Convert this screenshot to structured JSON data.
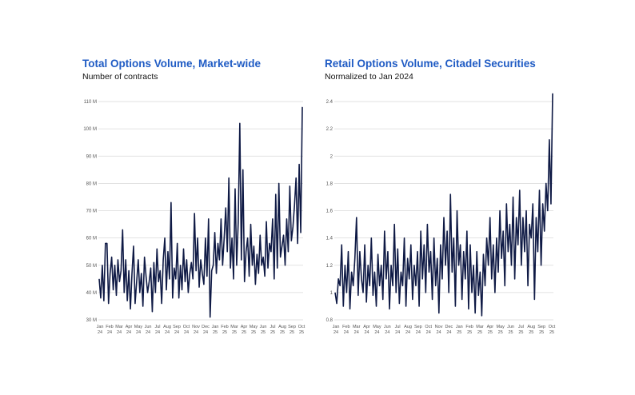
{
  "chart_data": [
    {
      "type": "line",
      "title": "Total Options Volume, Market-wide",
      "subtitle": "Number of contracts",
      "ylim": [
        30,
        110
      ],
      "yticks": [
        30,
        40,
        50,
        60,
        70,
        80,
        90,
        100,
        110
      ],
      "ytick_labels": [
        "30 M",
        "40 M",
        "50 M",
        "60 M",
        "70 M",
        "80 M",
        "90 M",
        "100 M",
        "110 M"
      ],
      "xtick_labels": [
        [
          "Jan",
          "24"
        ],
        [
          "Feb",
          "24"
        ],
        [
          "Mar",
          "24"
        ],
        [
          "Apr",
          "24"
        ],
        [
          "May",
          "24"
        ],
        [
          "Jun",
          "24"
        ],
        [
          "Jul",
          "24"
        ],
        [
          "Aug",
          "24"
        ],
        [
          "Sep",
          "24"
        ],
        [
          "Oct",
          "24"
        ],
        [
          "Nov",
          "24"
        ],
        [
          "Dec",
          "24"
        ],
        [
          "Jan",
          "25"
        ],
        [
          "Feb",
          "25"
        ],
        [
          "Mar",
          "25"
        ],
        [
          "Apr",
          "25"
        ],
        [
          "May",
          "25"
        ],
        [
          "Jun",
          "25"
        ],
        [
          "Jul",
          "25"
        ],
        [
          "Aug",
          "25"
        ],
        [
          "Sep",
          "25"
        ],
        [
          "Oct",
          "25"
        ]
      ],
      "series": [
        {
          "name": "Total Options Volume",
          "color": "#0f1a45",
          "values": [
            45,
            38,
            50,
            37,
            58,
            58,
            36,
            47,
            53,
            41,
            50,
            39,
            52,
            44,
            48,
            63,
            40,
            52,
            37,
            48,
            34,
            47,
            57,
            36,
            44,
            52,
            40,
            47,
            35,
            53,
            46,
            40,
            44,
            49,
            33,
            51,
            40,
            56,
            44,
            48,
            36,
            52,
            60,
            41,
            55,
            45,
            73,
            38,
            49,
            45,
            58,
            38,
            50,
            41,
            56,
            44,
            52,
            40,
            47,
            51,
            45,
            69,
            48,
            60,
            42,
            52,
            47,
            43,
            60,
            46,
            67,
            31,
            48,
            50,
            62,
            47,
            58,
            52,
            67,
            50,
            60,
            71,
            55,
            82,
            49,
            60,
            45,
            78,
            50,
            66,
            102,
            52,
            85,
            44,
            55,
            60,
            46,
            65,
            50,
            57,
            43,
            54,
            47,
            61,
            50,
            53,
            46,
            66,
            49,
            58,
            55,
            67,
            45,
            76,
            49,
            80,
            53,
            57,
            61,
            50,
            67,
            55,
            79,
            59,
            64,
            72,
            82,
            58,
            87,
            62,
            108
          ]
        }
      ]
    },
    {
      "type": "line",
      "title": "Retail Options Volume, Citadel Securities",
      "subtitle": "Normalized to Jan 2024",
      "ylim": [
        0.8,
        2.4
      ],
      "yticks": [
        0.8,
        1,
        1.2,
        1.4,
        1.6,
        1.8,
        2,
        2.2,
        2.4
      ],
      "ytick_labels": [
        "0.8",
        "1",
        "1.2",
        "1.4",
        "1.6",
        "1.8",
        "2",
        "2.2",
        "2.4"
      ],
      "xtick_labels": [
        [
          "Jan",
          "24"
        ],
        [
          "Feb",
          "24"
        ],
        [
          "Mar",
          "24"
        ],
        [
          "Apr",
          "24"
        ],
        [
          "May",
          "24"
        ],
        [
          "Jun",
          "24"
        ],
        [
          "Jul",
          "24"
        ],
        [
          "Aug",
          "24"
        ],
        [
          "Sep",
          "24"
        ],
        [
          "Oct",
          "24"
        ],
        [
          "Nov",
          "24"
        ],
        [
          "Dec",
          "24"
        ],
        [
          "Jan",
          "25"
        ],
        [
          "Feb",
          "25"
        ],
        [
          "Mar",
          "25"
        ],
        [
          "Apr",
          "25"
        ],
        [
          "May",
          "25"
        ],
        [
          "Jun",
          "25"
        ],
        [
          "Jul",
          "25"
        ],
        [
          "Aug",
          "25"
        ],
        [
          "Sep",
          "25"
        ],
        [
          "Oct",
          "25"
        ]
      ],
      "series": [
        {
          "name": "Retail Options Volume",
          "color": "#0f1a45",
          "values": [
            1.0,
            0.92,
            1.1,
            1.05,
            1.35,
            0.9,
            1.2,
            1.0,
            1.3,
            0.88,
            1.15,
            1.05,
            1.25,
            1.55,
            0.98,
            1.3,
            1.1,
            1.0,
            1.35,
            0.93,
            1.2,
            1.05,
            1.4,
            0.98,
            1.15,
            0.9,
            1.28,
            1.05,
            1.2,
            0.95,
            1.45,
            1.1,
            1.3,
            0.88,
            1.2,
            1.05,
            1.5,
            1.0,
            1.32,
            0.92,
            1.15,
            1.05,
            1.4,
            0.9,
            1.25,
            1.1,
            1.35,
            0.95,
            1.2,
            1.05,
            1.3,
            0.9,
            1.45,
            1.1,
            1.35,
            1.0,
            1.5,
            1.15,
            1.3,
            0.95,
            1.4,
            1.05,
            1.25,
            0.85,
            1.35,
            1.1,
            1.55,
            1.2,
            1.45,
            1.0,
            1.72,
            1.15,
            1.4,
            0.9,
            1.6,
            1.2,
            1.35,
            0.95,
            1.3,
            1.1,
            1.45,
            0.88,
            1.35,
            1.0,
            1.2,
            0.85,
            1.3,
            0.98,
            1.15,
            0.83,
            1.28,
            1.05,
            1.4,
            1.2,
            1.55,
            1.1,
            1.35,
            1.0,
            1.4,
            1.15,
            1.6,
            1.25,
            1.45,
            1.05,
            1.65,
            1.3,
            1.5,
            1.2,
            1.7,
            1.1,
            1.55,
            1.35,
            1.75,
            1.2,
            1.55,
            1.3,
            1.6,
            1.05,
            1.5,
            1.4,
            1.65,
            0.95,
            1.55,
            1.3,
            1.75,
            1.2,
            1.65,
            1.45,
            1.8,
            1.6,
            2.12,
            1.65,
            2.46
          ]
        }
      ]
    }
  ]
}
